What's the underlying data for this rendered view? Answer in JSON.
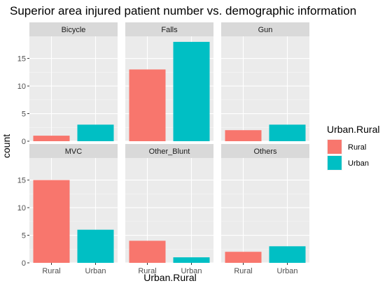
{
  "chart_data": {
    "type": "bar",
    "title": "Superior area injured patient number vs. demographic information",
    "xlabel": "Urban.Rural",
    "ylabel": "count",
    "categories": [
      "Rural",
      "Urban"
    ],
    "y_ticks": [
      0,
      5,
      10,
      15
    ],
    "ylim": [
      0,
      19
    ],
    "facet_rows": 2,
    "facet_cols": 3,
    "grid": true,
    "legend": {
      "title": "Urban.Rural",
      "placement": "right",
      "items": [
        {
          "label": "Rural",
          "color": "#F8766D"
        },
        {
          "label": "Urban",
          "color": "#00BFC4"
        }
      ]
    },
    "panels": [
      {
        "name": "Bicycle",
        "values": [
          1,
          3
        ]
      },
      {
        "name": "Falls",
        "values": [
          13,
          18
        ]
      },
      {
        "name": "Gun",
        "values": [
          2,
          3
        ]
      },
      {
        "name": "MVC",
        "values": [
          15,
          6
        ]
      },
      {
        "name": "Other_Blunt",
        "values": [
          4,
          1
        ]
      },
      {
        "name": "Others",
        "values": [
          2,
          3
        ]
      }
    ]
  }
}
